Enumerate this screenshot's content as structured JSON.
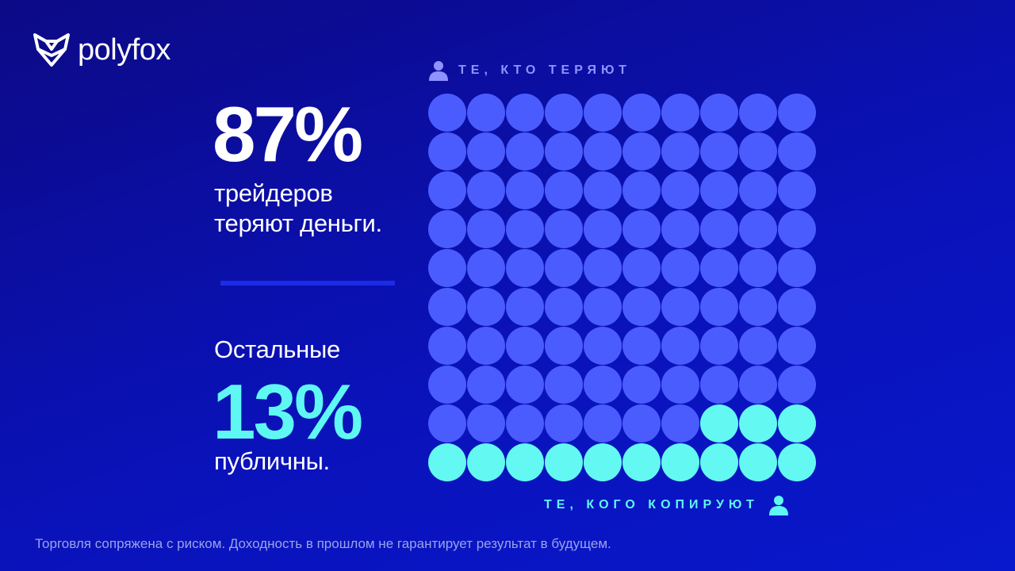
{
  "brand": {
    "name": "polyfox"
  },
  "stats": {
    "losers_percent": "87%",
    "losers_caption_line1": "трейдеров",
    "losers_caption_line2": "теряют деньги.",
    "rest_label": "Остальные",
    "public_percent": "13%",
    "public_caption": "публичны."
  },
  "grid": {
    "top_label": "ТЕ, КТО ТЕРЯЮТ",
    "bottom_label": "ТЕ, КОГО КОПИРУЮТ",
    "rows": 10,
    "cols": 10,
    "losing_count": 87,
    "public_count": 13,
    "losing_color": "#4b5cff",
    "public_color": "#63f8f2"
  },
  "icons": {
    "logo": "fox-logo-icon",
    "person": "person-icon"
  },
  "footer": {
    "disclaimer": "Торговля сопряжена с риском. Доходность в прошлом не гарантирует результат в будущем."
  }
}
